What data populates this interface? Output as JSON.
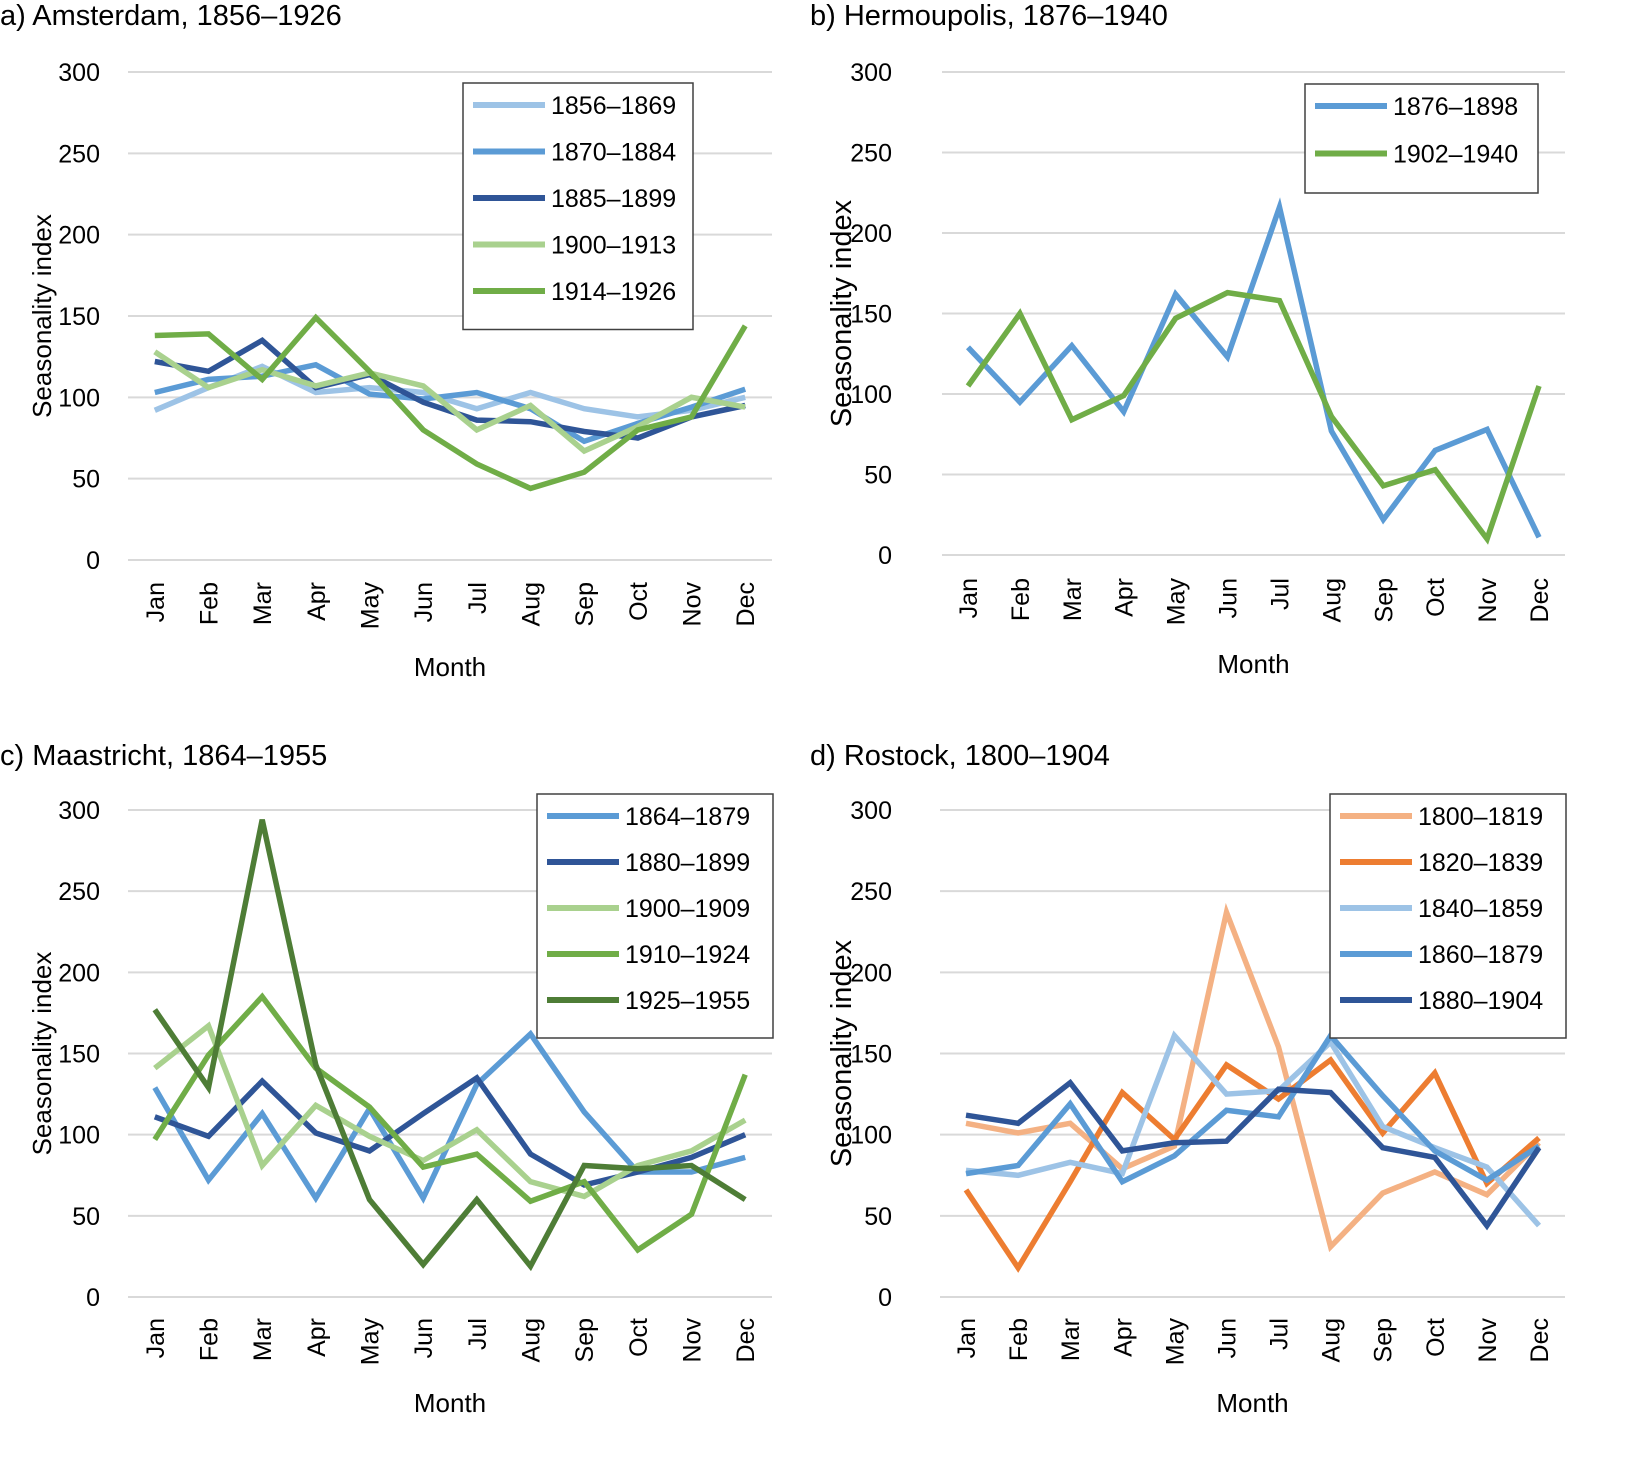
{
  "charts": [
    {
      "id": "a",
      "title": "a) Amsterdam, 1856–1926",
      "chart_data": {
        "type": "line",
        "title": "a) Amsterdam, 1856–1926",
        "xlabel": "Month",
        "ylabel": "Seasonality index",
        "ylim": [
          0,
          300
        ],
        "yticks": [
          0,
          50,
          100,
          150,
          200,
          250,
          300
        ],
        "grid": true,
        "legend": "top-right",
        "categories": [
          "Jan",
          "Feb",
          "Mar",
          "Apr",
          "May",
          "Jun",
          "Jul",
          "Aug",
          "Sep",
          "Oct",
          "Nov",
          "Dec"
        ],
        "series": [
          {
            "name": "1856–1869",
            "color": "#9dc3e6",
            "values": [
              92,
              106,
              119,
              103,
              106,
              103,
              93,
              103,
              93,
              88,
              92,
              100
            ]
          },
          {
            "name": "1870–1884",
            "color": "#5b9bd5",
            "values": [
              103,
              111,
              113,
              120,
              102,
              99,
              103,
              93,
              73,
              84,
              94,
              105
            ]
          },
          {
            "name": "1885–1899",
            "color": "#2f5597",
            "values": [
              122,
              116,
              135,
              106,
              114,
              97,
              86,
              85,
              79,
              75,
              88,
              95
            ]
          },
          {
            "name": "1900–1913",
            "color": "#a9d18e",
            "values": [
              128,
              106,
              117,
              107,
              115,
              107,
              80,
              95,
              67,
              82,
              100,
              94
            ]
          },
          {
            "name": "1914–1926",
            "color": "#70ad47",
            "values": [
              138,
              139,
              111,
              149,
              116,
              80,
              59,
              44,
              54,
              80,
              88,
              144
            ]
          }
        ]
      }
    },
    {
      "id": "b",
      "title": "b) Hermoupolis, 1876–1940",
      "chart_data": {
        "type": "line",
        "title": "b) Hermoupolis, 1876–1940",
        "xlabel": "Month",
        "ylabel": "Seasonality index",
        "ylim": [
          0,
          300
        ],
        "yticks": [
          0,
          50,
          100,
          150,
          200,
          250,
          300
        ],
        "grid": true,
        "legend": "top-right",
        "categories": [
          "Jan",
          "Feb",
          "Mar",
          "Apr",
          "May",
          "Jun",
          "Jul",
          "Aug",
          "Sep",
          "Oct",
          "Nov",
          "Dec"
        ],
        "series": [
          {
            "name": "1876–1898",
            "color": "#5b9bd5",
            "values": [
              129,
              95,
              130,
              89,
              162,
              123,
              216,
              77,
              22,
              65,
              78,
              11
            ]
          },
          {
            "name": "1902–1940",
            "color": "#70ad47",
            "values": [
              105,
              150,
              84,
              99,
              147,
              163,
              158,
              86,
              43,
              53,
              10,
              105
            ]
          }
        ]
      }
    },
    {
      "id": "c",
      "title": "c) Maastricht, 1864–1955",
      "chart_data": {
        "type": "line",
        "title": "c) Maastricht, 1864–1955",
        "xlabel": "Month",
        "ylabel": "Seasonality index",
        "ylim": [
          0,
          300
        ],
        "yticks": [
          0,
          50,
          100,
          150,
          200,
          250,
          300
        ],
        "grid": true,
        "legend": "top-right",
        "categories": [
          "Jan",
          "Feb",
          "Mar",
          "Apr",
          "May",
          "Jun",
          "Jul",
          "Aug",
          "Sep",
          "Oct",
          "Nov",
          "Dec"
        ],
        "series": [
          {
            "name": "1864–1879",
            "color": "#5b9bd5",
            "values": [
              129,
              72,
              113,
              61,
              116,
              61,
              131,
              162,
              114,
              77,
              77,
              86
            ]
          },
          {
            "name": "1880–1899",
            "color": "#2f5597",
            "values": [
              111,
              99,
              133,
              101,
              90,
              113,
              135,
              88,
              69,
              77,
              86,
              100
            ]
          },
          {
            "name": "1900–1909",
            "color": "#a9d18e",
            "values": [
              141,
              167,
              81,
              118,
              99,
              84,
              103,
              71,
              62,
              81,
              90,
              109
            ]
          },
          {
            "name": "1910–1924",
            "color": "#70ad47",
            "values": [
              97,
              149,
              185,
              141,
              117,
              80,
              88,
              59,
              71,
              29,
              51,
              137
            ]
          },
          {
            "name": "1925–1955",
            "color": "#4e7d36",
            "values": [
              177,
              129,
              294,
              143,
              60,
              20,
              60,
              19,
              81,
              79,
              81,
              60
            ]
          }
        ]
      }
    },
    {
      "id": "d",
      "title": "d) Rostock, 1800–1904",
      "chart_data": {
        "type": "line",
        "title": "d) Rostock, 1800–1904",
        "xlabel": "Month",
        "ylabel": "Seasonality index",
        "ylim": [
          0,
          300
        ],
        "yticks": [
          0,
          50,
          100,
          150,
          200,
          250,
          300
        ],
        "grid": true,
        "legend": "top-right",
        "categories": [
          "Jan",
          "Feb",
          "Mar",
          "Apr",
          "May",
          "Jun",
          "Jul",
          "Aug",
          "Sep",
          "Oct",
          "Nov",
          "Dec"
        ],
        "series": [
          {
            "name": "1800–1819",
            "color": "#f4b183",
            "values": [
              107,
              101,
              107,
              79,
              93,
              237,
              154,
              31,
              64,
              77,
              63,
              95
            ]
          },
          {
            "name": "1820–1839",
            "color": "#ed7d31",
            "values": [
              66,
              18,
              71,
              126,
              97,
              143,
              122,
              146,
              101,
              138,
              70,
              98
            ]
          },
          {
            "name": "1840–1859",
            "color": "#9dc3e6",
            "values": [
              78,
              75,
              83,
              76,
              161,
              125,
              127,
              157,
              105,
              92,
              80,
              44
            ]
          },
          {
            "name": "1860–1879",
            "color": "#5b9bd5",
            "values": [
              76,
              81,
              119,
              71,
              87,
              115,
              111,
              161,
              124,
              90,
              72,
              93
            ]
          },
          {
            "name": "1880–1904",
            "color": "#2f5597",
            "values": [
              112,
              107,
              132,
              90,
              95,
              96,
              128,
              126,
              92,
              86,
              44,
              92
            ]
          }
        ]
      }
    }
  ]
}
